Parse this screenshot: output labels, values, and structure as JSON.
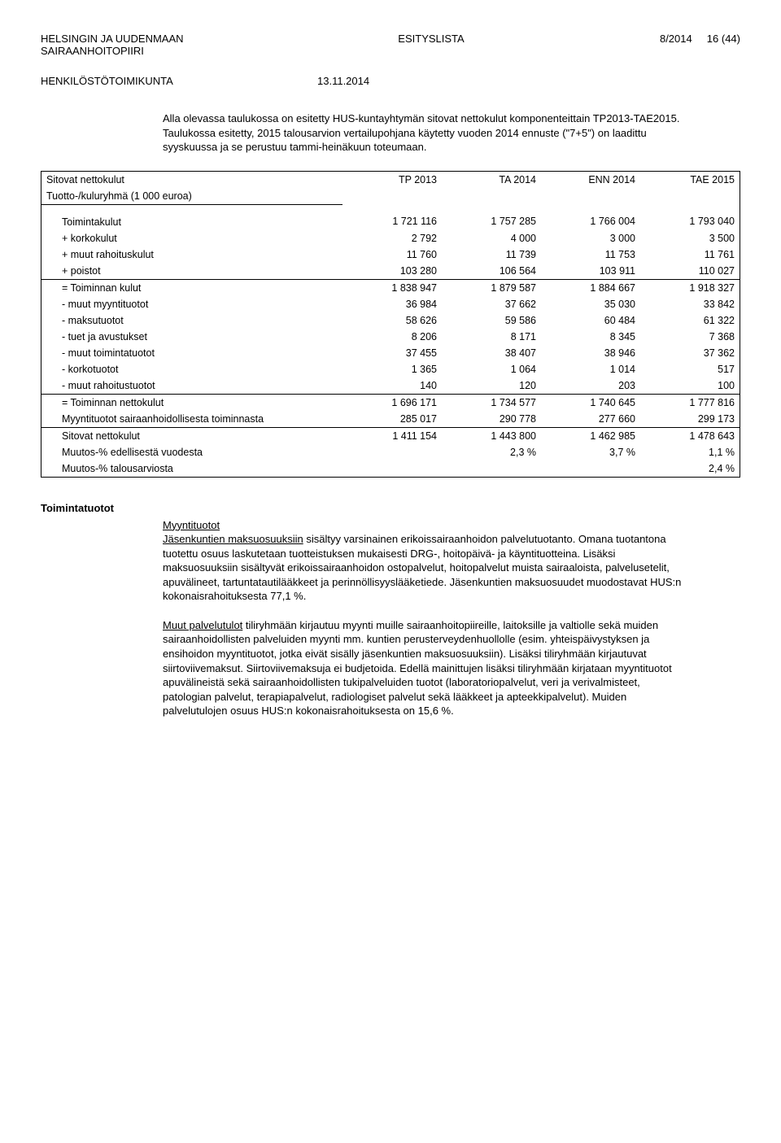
{
  "header": {
    "org_line1": "HELSINGIN JA UUDENMAAN",
    "org_line2": "SAIRAANHOITOPIIRI",
    "doc_type": "ESITYSLISTA",
    "doc_num": "8/2014",
    "page_num": "16 (44)",
    "committee": "HENKILÖSTÖTOIMIKUNTA",
    "date": "13.11.2014"
  },
  "intro": "Alla olevassa taulukossa on esitetty HUS-kuntayhtymän sitovat nettokulut komponenteittain TP2013-TAE2015. Taulukossa esitetty, 2015 talousarvion vertailupohjana käytetty vuoden 2014 ennuste (\"7+5\") on laadittu syyskuussa ja se perustuu tammi-heinäkuun toteumaan.",
  "table": {
    "title": "Sitovat nettokulut",
    "subtitle": "Tuotto-/kuluryhmä (1 000 euroa)",
    "col_headers": [
      "TP 2013",
      "TA 2014",
      "ENN 2014",
      "TAE 2015"
    ],
    "rows": [
      {
        "label": "Toimintakulut",
        "vals": [
          "1 721 116",
          "1 757 285",
          "1 766 004",
          "1 793 040"
        ],
        "section_top": true
      },
      {
        "label": "+ korkokulut",
        "vals": [
          "2 792",
          "4 000",
          "3 000",
          "3 500"
        ]
      },
      {
        "label": "+ muut rahoituskulut",
        "vals": [
          "11 760",
          "11 739",
          "11 753",
          "11 761"
        ]
      },
      {
        "label": "+ poistot",
        "vals": [
          "103 280",
          "106 564",
          "103 911",
          "110 027"
        ]
      },
      {
        "label": "= Toiminnan kulut",
        "vals": [
          "1 838 947",
          "1 879 587",
          "1 884 667",
          "1 918 327"
        ],
        "eqrow": true
      },
      {
        "label": "- muut myyntituotot",
        "vals": [
          "36 984",
          "37 662",
          "35 030",
          "33 842"
        ]
      },
      {
        "label": " - maksutuotot",
        "vals": [
          "58 626",
          "59 586",
          "60 484",
          "61 322"
        ]
      },
      {
        "label": "- tuet ja avustukset",
        "vals": [
          "8 206",
          "8 171",
          "8 345",
          "7 368"
        ]
      },
      {
        "label": "- muut toimintatuotot",
        "vals": [
          "37 455",
          "38 407",
          "38 946",
          "37 362"
        ]
      },
      {
        "label": "- korkotuotot",
        "vals": [
          "1 365",
          "1 064",
          "1 014",
          "517"
        ]
      },
      {
        "label": "- muut rahoitustuotot",
        "vals": [
          "140",
          "120",
          "203",
          "100"
        ]
      },
      {
        "label": "= Toiminnan nettokulut",
        "vals": [
          "1 696 171",
          "1 734 577",
          "1 740 645",
          "1 777 816"
        ],
        "eqrow": true
      },
      {
        "label": "Myyntituotot sairaanhoidollisesta toiminnasta",
        "vals": [
          "285 017",
          "290 778",
          "277 660",
          "299 173"
        ]
      },
      {
        "label": "Sitovat nettokulut",
        "vals": [
          "1 411 154",
          "1 443 800",
          "1 462 985",
          "1 478 643"
        ],
        "eqrow": true
      },
      {
        "label": "Muutos-% edellisestä vuodesta",
        "vals": [
          "",
          "2,3 %",
          "3,7 %",
          "1,1 %"
        ]
      },
      {
        "label": "Muutos-% talousarviosta",
        "vals": [
          "",
          "",
          "",
          "2,4 %"
        ],
        "last": true
      }
    ]
  },
  "section": {
    "heading": "Toimintatuotot",
    "p1_title": "Myyntituotot",
    "p1_lead": "Jäsenkuntien maksuosuuksiin",
    "p1_rest": " sisältyy varsinainen erikoissairaanhoidon palvelutuotanto. Omana tuotantona tuotettu osuus laskutetaan tuotteistuksen mukaisesti DRG-, hoitopäivä- ja käyntituotteina. Lisäksi maksuosuuksiin sisältyvät erikoissairaanhoidon ostopalvelut, hoitopalvelut muista sairaaloista, palvelusetelit, apuvälineet, tartuntatautilääkkeet ja perinnöllisyyslääketiede. Jäsenkuntien maksuosuudet muodostavat HUS:n kokonaisrahoituksesta 77,1 %.",
    "p2_lead": "Muut palvelutulot",
    "p2_rest": " tiliryhmään kirjautuu myynti muille sairaanhoitopiireille, laitoksille ja valtiolle sekä muiden sairaanhoidollisten palveluiden myynti mm. kuntien perusterveydenhuollolle (esim. yhteispäivystyksen ja ensihoidon myyntituotot, jotka eivät sisälly jäsenkuntien maksuosuuksiin). Lisäksi tiliryhmään kirjautuvat siirtoviivemaksut. Siirtoviivemaksuja ei budjetoida. Edellä mainittujen lisäksi tiliryhmään kirjataan myyntituotot apuvälineistä sekä sairaanhoidollisten tukipalveluiden tuotot (laboratoriopalvelut, veri ja verivalmisteet, patologian palvelut, terapiapalvelut, radiologiset palvelut sekä lääkkeet ja apteekkipalvelut). Muiden palvelutulojen osuus HUS:n kokonaisrahoituksesta on 15,6 %."
  }
}
